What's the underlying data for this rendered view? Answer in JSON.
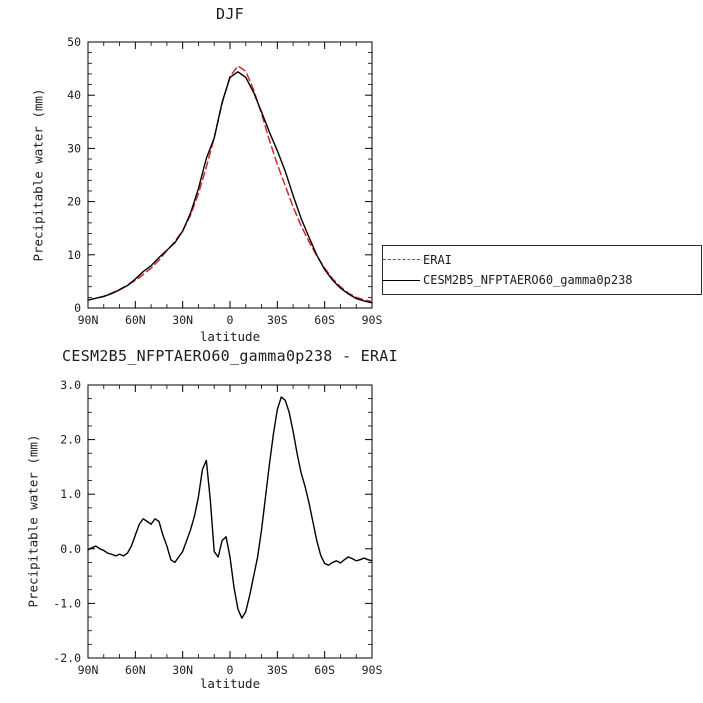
{
  "chart_data": [
    {
      "type": "line",
      "title": "DJF",
      "xlabel": "latitude",
      "ylabel": "Precipitable water (mm)",
      "xlim": [
        90,
        -90
      ],
      "ylim": [
        0,
        50
      ],
      "x_tick_values": [
        90,
        60,
        30,
        0,
        -30,
        -60,
        -90
      ],
      "x_tick_labels": [
        "90N",
        "60N",
        "30N",
        "0",
        "30S",
        "60S",
        "90S"
      ],
      "x_minor_step": 10,
      "y_tick_values": [
        0,
        10,
        20,
        30,
        40,
        50
      ],
      "y_tick_labels": [
        "0",
        "10",
        "20",
        "30",
        "40",
        "50"
      ],
      "y_minor_step": 2,
      "grid": false,
      "x": [
        90,
        85,
        80,
        75,
        70,
        65,
        60,
        55,
        50,
        45,
        40,
        35,
        30,
        25,
        20,
        15,
        10,
        5,
        0,
        -5,
        -10,
        -15,
        -20,
        -25,
        -30,
        -35,
        -40,
        -45,
        -50,
        -55,
        -60,
        -65,
        -70,
        -75,
        -80,
        -85,
        -90
      ],
      "series": [
        {
          "name": "ERAI",
          "color": "#d22b2b",
          "style": "dashed",
          "values": [
            1.5,
            1.8,
            2.2,
            2.8,
            3.5,
            4.3,
            5.2,
            6.3,
            7.5,
            9.0,
            10.8,
            12.5,
            14.5,
            17.5,
            21.5,
            26.5,
            32.0,
            38.5,
            43.5,
            45.5,
            44.5,
            41.0,
            36.5,
            31.5,
            27.0,
            23.0,
            19.0,
            15.5,
            12.5,
            9.8,
            7.5,
            5.5,
            4.0,
            2.8,
            2.0,
            1.5,
            1.2
          ]
        },
        {
          "name": "CESM2B5_NFPTAERO60_gamma0p238",
          "color": "#000000",
          "style": "solid",
          "values": [
            1.48,
            1.85,
            2.17,
            2.7,
            3.4,
            4.22,
            5.45,
            6.85,
            7.95,
            9.5,
            10.85,
            12.25,
            14.45,
            17.85,
            22.45,
            28.12,
            31.95,
            38.65,
            43.35,
            44.4,
            43.35,
            40.5,
            36.85,
            33.05,
            29.55,
            25.72,
            21.15,
            16.9,
            13.35,
            9.95,
            7.23,
            5.25,
            3.74,
            2.65,
            1.78,
            1.33,
            0.98
          ]
        }
      ],
      "legend": {
        "position": "right",
        "entries": [
          "ERAI",
          "CESM2B5_NFPTAERO60_gamma0p238"
        ]
      }
    },
    {
      "type": "line",
      "title": "CESM2B5_NFPTAERO60_gamma0p238 - ERAI",
      "xlabel": "latitude",
      "ylabel": "Precipitable water (mm)",
      "xlim": [
        90,
        -90
      ],
      "ylim": [
        -2.0,
        3.0
      ],
      "x_tick_values": [
        90,
        60,
        30,
        0,
        -30,
        -60,
        -90
      ],
      "x_tick_labels": [
        "90N",
        "60N",
        "30N",
        "0",
        "30S",
        "60S",
        "90S"
      ],
      "x_minor_step": 10,
      "y_tick_values": [
        -2.0,
        -1.0,
        0.0,
        1.0,
        2.0,
        3.0
      ],
      "y_tick_labels": [
        "-2.0",
        "-1.0",
        "0.0",
        "1.0",
        "2.0",
        "3.0"
      ],
      "y_minor_step": 0.25,
      "grid": false,
      "x": [
        90,
        87.5,
        85,
        82.5,
        80,
        77.5,
        75,
        72.5,
        70,
        67.5,
        65,
        62.5,
        60,
        57.5,
        55,
        52.5,
        50,
        47.5,
        45,
        42.5,
        40,
        37.5,
        35,
        32.5,
        30,
        27.5,
        25,
        22.5,
        20,
        17.5,
        15,
        12.5,
        10,
        7.5,
        5,
        2.5,
        0,
        -2.5,
        -5,
        -7.5,
        -10,
        -12.5,
        -15,
        -17.5,
        -20,
        -22.5,
        -25,
        -27.5,
        -30,
        -32.5,
        -35,
        -37.5,
        -40,
        -42.5,
        -45,
        -47.5,
        -50,
        -52.5,
        -55,
        -57.5,
        -60,
        -62.5,
        -65,
        -67.5,
        -70,
        -72.5,
        -75,
        -77.5,
        -80,
        -82.5,
        -85,
        -87.5,
        -90
      ],
      "series": [
        {
          "name": "CESM2B5_NFPTAERO60_gamma0p238 - ERAI",
          "color": "#000000",
          "style": "solid",
          "values": [
            -0.02,
            0.02,
            0.05,
            0.0,
            -0.03,
            -0.08,
            -0.1,
            -0.13,
            -0.1,
            -0.13,
            -0.08,
            0.05,
            0.25,
            0.45,
            0.55,
            0.5,
            0.45,
            0.55,
            0.5,
            0.25,
            0.05,
            -0.2,
            -0.25,
            -0.15,
            -0.05,
            0.15,
            0.35,
            0.6,
            0.95,
            1.45,
            1.62,
            0.9,
            -0.05,
            -0.15,
            0.15,
            0.22,
            -0.15,
            -0.7,
            -1.1,
            -1.27,
            -1.15,
            -0.85,
            -0.5,
            -0.15,
            0.35,
            0.95,
            1.55,
            2.1,
            2.55,
            2.78,
            2.72,
            2.5,
            2.15,
            1.75,
            1.4,
            1.15,
            0.85,
            0.5,
            0.15,
            -0.12,
            -0.27,
            -0.3,
            -0.25,
            -0.22,
            -0.26,
            -0.2,
            -0.15,
            -0.18,
            -0.22,
            -0.2,
            -0.17,
            -0.2,
            -0.22
          ]
        }
      ]
    }
  ]
}
